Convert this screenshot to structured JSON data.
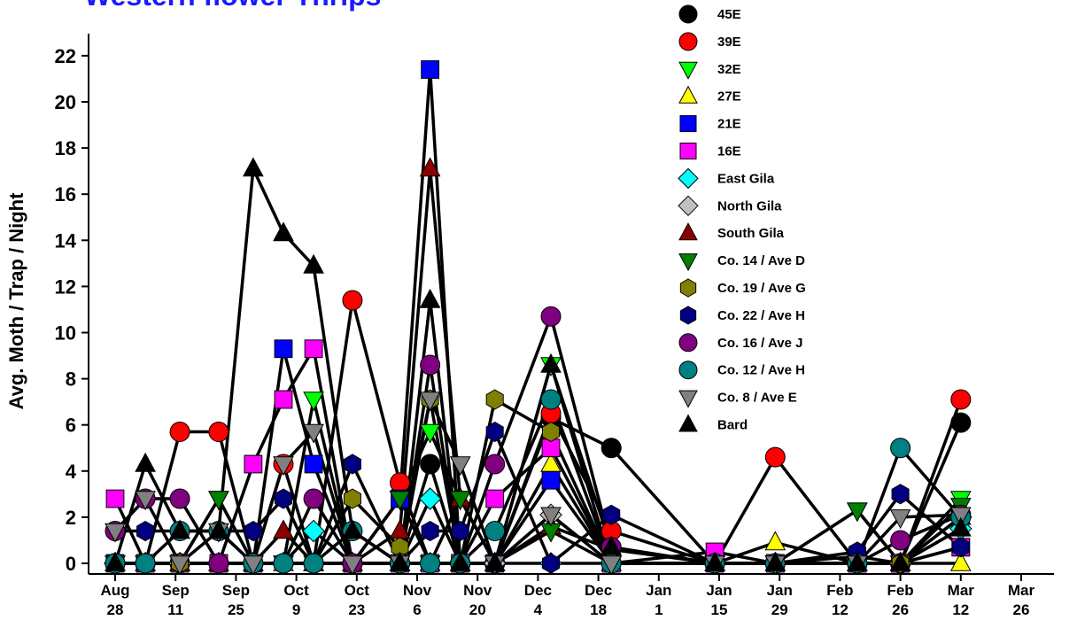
{
  "chart_data": {
    "type": "line",
    "title": "Western flower Thrips",
    "y_label": "Avg. Moth / Trap / Night",
    "x": [
      "Aug 28",
      "Sep 4",
      "Sep 12",
      "Sep 21",
      "Sep 29",
      "Oct 6",
      "Oct 13",
      "Oct 22",
      "Nov 2",
      "Nov 9",
      "Nov 16",
      "Nov 24",
      "Dec 7",
      "Dec 21",
      "Jan 14",
      "Jan 28",
      "Feb 16",
      "Feb 26",
      "Mar 12"
    ],
    "xlim": [
      "Aug 28",
      "Mar 26"
    ],
    "xticks": [
      "Aug 28",
      "Sep 11",
      "Sep 25",
      "Oct 9",
      "Oct 23",
      "Nov 6",
      "Nov 20",
      "Dec 4",
      "Dec 18",
      "Jan 1",
      "Jan 15",
      "Jan 29",
      "Feb 12",
      "Feb 26",
      "Mar 12",
      "Mar 26"
    ],
    "ylim": [
      0,
      22.5
    ],
    "yticks": [
      0,
      2,
      4,
      6,
      8,
      10,
      12,
      14,
      16,
      18,
      20,
      22
    ],
    "line_color": "#000000",
    "series": [
      {
        "name": "45E",
        "color": "#000000",
        "marker": "circle",
        "values": [
          0,
          0,
          0,
          0,
          0,
          0,
          0,
          0,
          0,
          4.3,
          0,
          0,
          6.3,
          5.0,
          0,
          0,
          0.3,
          0,
          6.1
        ]
      },
      {
        "name": "39E",
        "color": "#ff0000",
        "marker": "circle",
        "values": [
          0,
          0,
          5.7,
          5.7,
          0,
          4.3,
          0,
          11.4,
          3.5,
          0,
          0,
          0,
          6.5,
          1.4,
          0,
          4.6,
          0,
          0,
          7.1
        ]
      },
      {
        "name": "32E",
        "color": "#00ff00",
        "marker": "tri-down",
        "values": [
          0,
          0,
          0,
          2.8,
          0,
          0,
          7.1,
          0,
          2.8,
          5.7,
          2.8,
          0,
          8.6,
          0,
          0,
          0,
          2.3,
          0,
          2.8
        ]
      },
      {
        "name": "27E",
        "color": "#ffff00",
        "marker": "tri-up",
        "values": [
          0,
          0,
          0,
          0,
          0,
          0,
          0,
          0,
          0,
          0,
          0,
          0,
          4.3,
          0,
          0,
          0.9,
          0,
          0,
          0
        ]
      },
      {
        "name": "21E",
        "color": "#0000ff",
        "marker": "square",
        "values": [
          0,
          0,
          0,
          0,
          0,
          9.3,
          4.3,
          0,
          2.8,
          21.4,
          0,
          0,
          3.6,
          0,
          0,
          0,
          0,
          0,
          0.7
        ]
      },
      {
        "name": "16E",
        "color": "#ff00ff",
        "marker": "square",
        "values": [
          2.8,
          0,
          0,
          0,
          4.3,
          7.1,
          9.3,
          0,
          0,
          0,
          0,
          2.8,
          5.0,
          0,
          0.5,
          0,
          0,
          0,
          0.7
        ]
      },
      {
        "name": "East Gila",
        "color": "#00ffff",
        "marker": "diamond",
        "values": [
          0,
          0,
          0,
          0,
          0,
          0,
          1.4,
          0,
          0,
          2.8,
          0,
          0,
          0,
          0,
          0,
          0,
          0,
          0,
          1.5
        ]
      },
      {
        "name": "North Gila",
        "color": "#c0c0c0",
        "marker": "diamond",
        "values": [
          0,
          0,
          0,
          0,
          0,
          0,
          0,
          0,
          0,
          0,
          0,
          0,
          2.1,
          0,
          0,
          0,
          0,
          0,
          2.0
        ]
      },
      {
        "name": "South Gila",
        "color": "#8b0000",
        "marker": "tri-up",
        "values": [
          0,
          0,
          0,
          0,
          0,
          1.4,
          0,
          0,
          1.4,
          17.1,
          2.8,
          0,
          1.6,
          0.6,
          0,
          0,
          0,
          0,
          2.0
        ]
      },
      {
        "name": "Co. 14 / Ave D",
        "color": "#008000",
        "marker": "tri-down",
        "values": [
          0,
          0,
          0,
          2.8,
          0,
          0,
          0,
          0,
          2.8,
          0,
          2.8,
          0,
          1.4,
          0,
          0,
          0,
          2.3,
          0,
          2.5
        ]
      },
      {
        "name": "Co. 19 / Ave G",
        "color": "#808000",
        "marker": "hexagon",
        "values": [
          0,
          0,
          0,
          0,
          0,
          0,
          0,
          2.8,
          0.7,
          7.1,
          0,
          7.1,
          5.7,
          0,
          0,
          0,
          0,
          0,
          2.0
        ]
      },
      {
        "name": "Co. 22 / Ave H",
        "color": "#000080",
        "marker": "hexagon",
        "values": [
          1.4,
          1.4,
          1.4,
          1.4,
          1.4,
          2.8,
          0,
          4.3,
          0,
          1.4,
          1.4,
          5.7,
          0,
          2.1,
          0,
          0,
          0.5,
          3.0,
          0.7
        ]
      },
      {
        "name": "Co. 16 / Ave J",
        "color": "#800080",
        "marker": "circle",
        "values": [
          1.4,
          2.8,
          2.8,
          0,
          0,
          0,
          2.8,
          0,
          0,
          8.6,
          0,
          4.3,
          10.7,
          0.7,
          0,
          0,
          0,
          1.0,
          2.1
        ]
      },
      {
        "name": "Co. 12 / Ave H",
        "color": "#008080",
        "marker": "circle",
        "values": [
          0,
          0,
          1.4,
          1.4,
          0,
          0,
          0,
          1.4,
          0,
          0,
          0,
          1.4,
          7.1,
          0,
          0,
          0,
          0,
          5.0,
          2.0
        ]
      },
      {
        "name": "Co. 8 / Ave E",
        "color": "#808080",
        "marker": "tri-down",
        "values": [
          1.4,
          2.8,
          0,
          1.4,
          0,
          4.3,
          5.7,
          0,
          0,
          7.1,
          4.3,
          0,
          2.1,
          0,
          0,
          0,
          0,
          2.0,
          2.1
        ]
      },
      {
        "name": "Bard",
        "color": "#000000",
        "marker": "tri-up",
        "values": [
          0,
          4.3,
          1.4,
          1.4,
          17.1,
          14.3,
          12.9,
          1.4,
          0,
          11.4,
          0,
          0,
          8.6,
          0.7,
          0,
          0,
          0,
          0,
          1.5
        ]
      }
    ]
  }
}
